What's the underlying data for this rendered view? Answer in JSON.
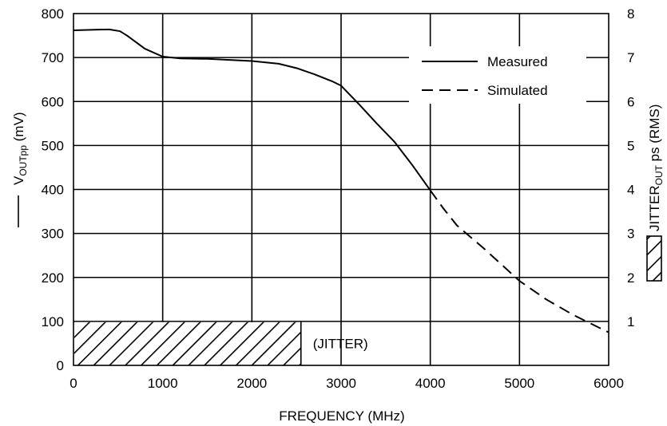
{
  "chart_data": {
    "type": "line",
    "xlabel": "FREQUENCY (MHz)",
    "ylabel_left": {
      "main": "V",
      "sub": "OUTpp",
      "unit": " (mV)"
    },
    "ylabel_right": {
      "main": "JITTER",
      "sub": "OUT",
      "unit": " ps (RMS)"
    },
    "xlim": [
      0,
      6000
    ],
    "ylim_left": [
      0,
      800
    ],
    "ylim_right": [
      0,
      8
    ],
    "x_ticks": [
      "0",
      "1000",
      "2000",
      "3000",
      "4000",
      "5000",
      "6000"
    ],
    "y_left_ticks": [
      "0",
      "100",
      "200",
      "300",
      "400",
      "500",
      "600",
      "700",
      "800"
    ],
    "y_right_ticks": [
      "1",
      "2",
      "3",
      "4",
      "5",
      "6",
      "7",
      "8"
    ],
    "grid": true,
    "legend": {
      "placement": "top-right",
      "entries": [
        {
          "name": "Measured",
          "style": "solid"
        },
        {
          "name": "Simulated",
          "style": "dashed"
        }
      ]
    },
    "series": [
      {
        "name": "Measured",
        "style": "solid",
        "points": [
          [
            0,
            762
          ],
          [
            200,
            763
          ],
          [
            400,
            764
          ],
          [
            520,
            760
          ],
          [
            600,
            750
          ],
          [
            800,
            720
          ],
          [
            1000,
            702
          ],
          [
            1200,
            698
          ],
          [
            1500,
            697
          ],
          [
            2000,
            692
          ],
          [
            2300,
            686
          ],
          [
            2500,
            676
          ],
          [
            2700,
            662
          ],
          [
            2900,
            646
          ],
          [
            3000,
            636
          ],
          [
            3200,
            594
          ],
          [
            3400,
            550
          ],
          [
            3600,
            508
          ],
          [
            3800,
            455
          ],
          [
            4000,
            398
          ]
        ]
      },
      {
        "name": "Simulated",
        "style": "dashed",
        "points": [
          [
            4000,
            398
          ],
          [
            4150,
            356
          ],
          [
            4300,
            318
          ],
          [
            4600,
            266
          ],
          [
            5000,
            192
          ],
          [
            5300,
            150
          ],
          [
            5600,
            115
          ],
          [
            6000,
            75
          ]
        ]
      }
    ],
    "jitter_bar": {
      "label": "(JITTER)",
      "x_start": 0,
      "x_end": 2550,
      "value": 1
    }
  }
}
